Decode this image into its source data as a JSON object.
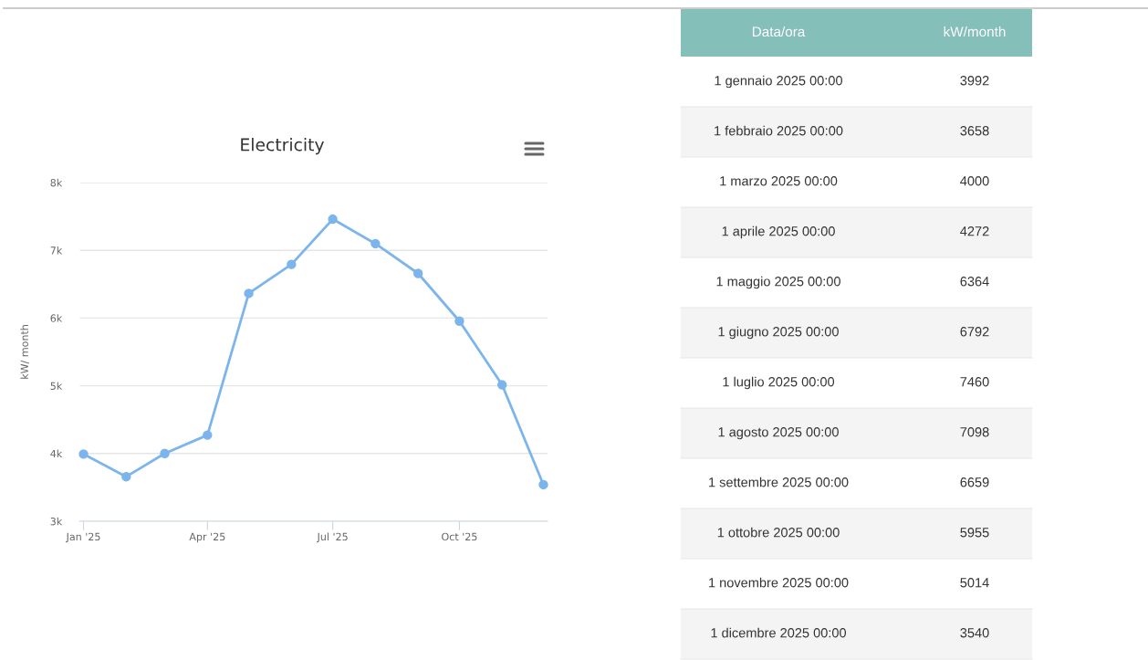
{
  "chart_data": [
    {
      "type": "line",
      "title": "Electricity",
      "ylabel": "kW/ month",
      "x": [
        "2025-01",
        "2025-02",
        "2025-03",
        "2025-04",
        "2025-05",
        "2025-06",
        "2025-07",
        "2025-08",
        "2025-09",
        "2025-10",
        "2025-11",
        "2025-12"
      ],
      "series": [
        {
          "color": "#7cb5ec",
          "values": [
            3992,
            3658,
            4000,
            4272,
            6364,
            6792,
            7460,
            7098,
            6659,
            5955,
            5014,
            3540
          ]
        }
      ],
      "xlim": [
        "2024-12-29",
        "2025-12-04"
      ],
      "xticks": [
        {
          "value": "2025-01",
          "label": "Jan '25"
        },
        {
          "value": "2025-04",
          "label": "Apr '25"
        },
        {
          "value": "2025-07",
          "label": "Jul '25"
        },
        {
          "value": "2025-10",
          "label": "Oct '25"
        }
      ],
      "ylim": [
        3000,
        8000
      ],
      "yticks": [
        {
          "value": 3000,
          "label": "3k"
        },
        {
          "value": 4000,
          "label": "4k"
        },
        {
          "value": 5000,
          "label": "5k"
        },
        {
          "value": 6000,
          "label": "6k"
        },
        {
          "value": 7000,
          "label": "7k"
        },
        {
          "value": 8000,
          "label": "8k"
        }
      ],
      "grid": "y",
      "marker": "circle",
      "line_style": "solid"
    },
    {
      "type": "other",
      "annotations": [
        "Data/ora",
        "kW/month"
      ],
      "categories": [
        "1 gennaio 2025 00:00",
        "1 febbraio 2025 00:00",
        "1 marzo 2025 00:00",
        "1 aprile 2025 00:00",
        "1 maggio 2025 00:00",
        "1 giugno 2025 00:00",
        "1 luglio 2025 00:00",
        "1 agosto 2025 00:00",
        "1 settembre 2025 00:00",
        "1 ottobre 2025 00:00",
        "1 novembre 2025 00:00",
        "1 dicembre 2025 00:00"
      ],
      "values": [
        3992,
        3658,
        4000,
        4272,
        6364,
        6792,
        7460,
        7098,
        6659,
        5955,
        5014,
        3540
      ],
      "data_labels": true
    }
  ]
}
